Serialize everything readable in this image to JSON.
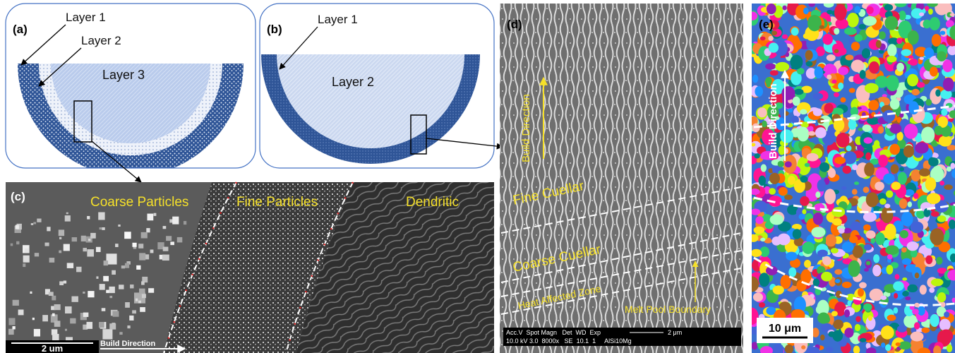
{
  "panels": [
    {
      "label": "(a)",
      "annotations": [
        "Layer 1",
        "Layer 2",
        "Layer 3"
      ]
    },
    {
      "label": "(b)",
      "annotations": [
        "Layer 1",
        "Layer 2"
      ]
    },
    {
      "label": "(c)",
      "annotations": [
        "Coarse Particles",
        "Fine Particles",
        "Dendritic",
        "Build Direction"
      ],
      "scale_bar": "2 um"
    },
    {
      "label": "(d)",
      "annotations": [
        "Build Direction",
        "Fine Cuellar",
        "Coarse Cuellar",
        "Heat Affected Zone",
        "Melt Pool Boundary"
      ],
      "scale_bar": "2 μm",
      "info_bar": {
        "header": "Acc.V  Spot Magn   Det  WD  Exp",
        "values": "10.0 kV 3.0  8000x   SE  10.1  1     AlSi10Mg"
      }
    },
    {
      "label": "(e)",
      "annotations": [
        "Build Direction"
      ],
      "scale_bar": "10 μm"
    }
  ]
}
